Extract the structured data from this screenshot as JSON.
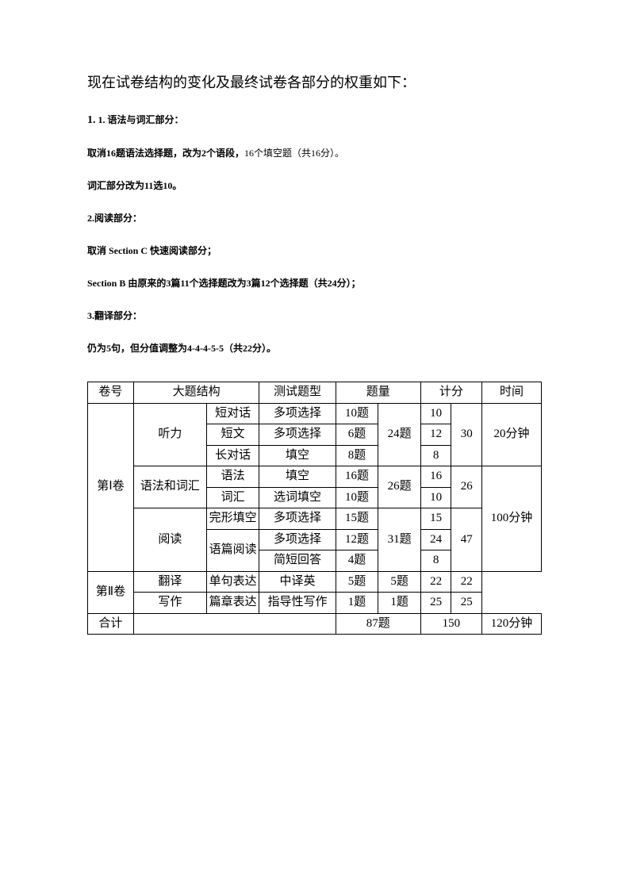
{
  "title": "现在试卷结构的变化及最终试卷各部分的权重如下：",
  "p1_prefix": "1.",
  "p1": " 1. 语法与词汇部分：",
  "p2a": "取消16题语法选择题，改为2个语段，",
  "p2b": "16个填空题（共16分）。",
  "p3": "词汇部分改为11选10。",
  "p4": "2.阅读部分：",
  "p5": "取消 Section C 快速阅读部分；",
  "p6": "Section B 由原来的3篇11个选择题改为3篇12个选择题（共24分）；",
  "p7": "3.翻译部分：",
  "p8": "仍为5句，但分值调整为4-4-4-5-5（共22分）。",
  "table": {
    "headers": {
      "vol": "卷号",
      "sec": "大题结构",
      "type": "测试题型",
      "qty": "题量",
      "score": "计分",
      "time": "时间"
    },
    "vol1": "第Ⅰ卷",
    "vol2": "第Ⅱ卷",
    "total_label": "合计",
    "listening": {
      "name": "听力",
      "r1": {
        "sub": "短对话",
        "type": "多项选择",
        "qty": "10题",
        "score": "10"
      },
      "r2": {
        "sub": "短文",
        "type": "多项选择",
        "qty": "6题",
        "score": "12"
      },
      "r3": {
        "sub": "长对话",
        "type": "填空",
        "qty": "8题",
        "score": "8"
      },
      "qty_total": "24题",
      "score_total": "30",
      "time": "20分钟"
    },
    "grammar": {
      "name": "语法和词汇",
      "r1": {
        "sub": "语法",
        "type": "填空",
        "qty": "16题",
        "score": "16"
      },
      "r2": {
        "sub": "词汇",
        "type": "选词填空",
        "qty": "10题",
        "score": "10"
      },
      "qty_total": "26题",
      "score_total": "26"
    },
    "reading": {
      "name": "阅读",
      "r1": {
        "sub": "完形填空",
        "type": "多项选择",
        "qty": "15题",
        "score": "15"
      },
      "r2": {
        "sub": "语篇阅读",
        "type": "多项选择",
        "qty": "12题",
        "score": "24"
      },
      "r3": {
        "sub_empty": "",
        "type": "简短回答",
        "qty": "4题",
        "score": "8"
      },
      "qty_total": "31题",
      "score_total": "47"
    },
    "time_100": "100分钟",
    "translate": {
      "name": "翻译",
      "sub": "单句表达",
      "type": "中译英",
      "qty": "5题",
      "qty_total": "5题",
      "score": "22",
      "score_total": "22"
    },
    "writing": {
      "name": "写作",
      "sub": "篇章表达",
      "type": "指导性写作",
      "qty": "1题",
      "qty_total": "1题",
      "score": "25",
      "score_total": "25"
    },
    "total": {
      "qty": "87题",
      "score": "150",
      "time": "120分钟"
    }
  }
}
